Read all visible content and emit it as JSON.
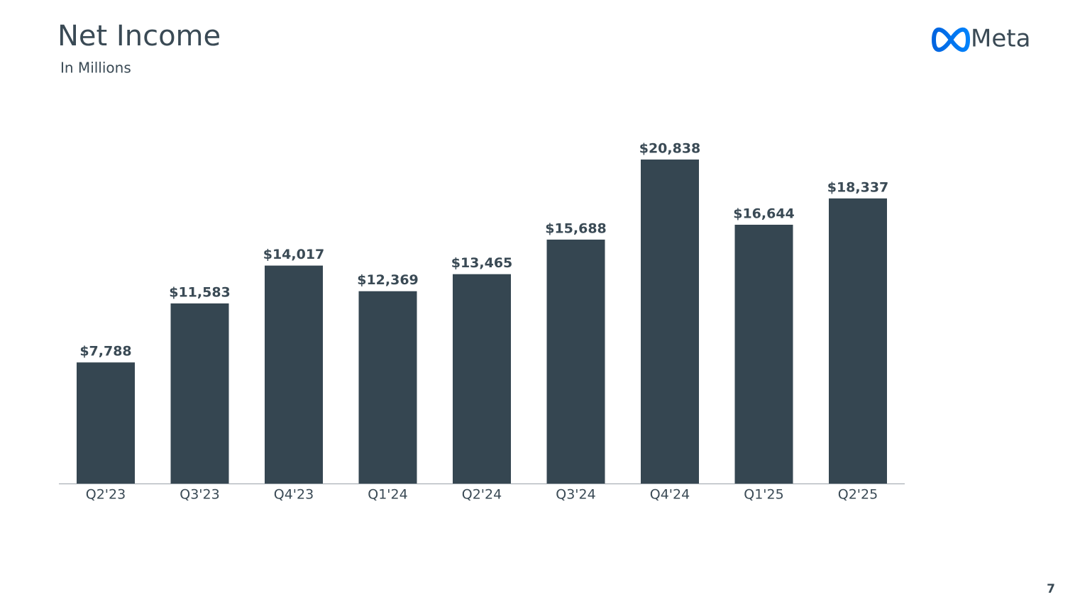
{
  "chart_data": {
    "type": "bar",
    "title": "Net Income",
    "subtitle": "In Millions",
    "categories": [
      "Q2'23",
      "Q3'23",
      "Q4'23",
      "Q1'24",
      "Q2'24",
      "Q3'24",
      "Q4'24",
      "Q1'25",
      "Q2'25"
    ],
    "values": [
      7788,
      11583,
      14017,
      12369,
      13465,
      15688,
      20838,
      16644,
      18337
    ],
    "value_labels": [
      "$7,788",
      "$11,583",
      "$14,017",
      "$12,369",
      "$13,465",
      "$15,688",
      "$20,838",
      "$16,644",
      "$18,337"
    ],
    "color": "#354651"
  },
  "logo": "Meta",
  "page_number": "7"
}
